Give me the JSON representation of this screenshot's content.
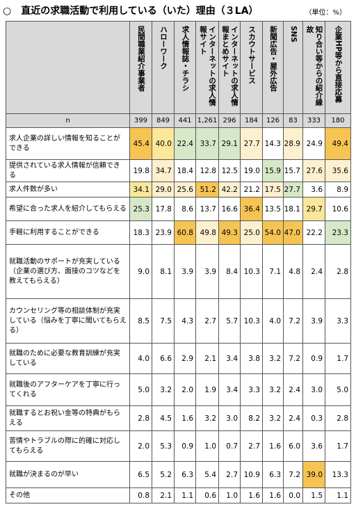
{
  "title": "○　直近の求職活動で利用している（いた）理由（３LA）",
  "unit": "（単位：%）",
  "n_label": "n",
  "columns": [
    {
      "label": "民間職業紹介事業者",
      "n": "399"
    },
    {
      "label": "ハローワーク",
      "n": "849"
    },
    {
      "label": "求人情報誌・チラシ",
      "n": "441"
    },
    {
      "label": "インターネットの求人情報サイト",
      "n": "1,261"
    },
    {
      "label": "インターネットの求人情報まとめサイト",
      "n": "296"
    },
    {
      "label": "スカウトサービス",
      "n": "184"
    },
    {
      "label": "新聞広告・屋外広告",
      "n": "126"
    },
    {
      "label": "SNS",
      "n": "83"
    },
    {
      "label": "知り合い等からの紹介縁故",
      "n": "333"
    },
    {
      "label": "企業HP等から直接応募",
      "n": "180"
    }
  ],
  "rows": [
    {
      "label": "求人企業の詳しい情報を知ることができる",
      "values": [
        "45.4",
        "40.0",
        "22.4",
        "33.7",
        "29.1",
        "27.7",
        "14.3",
        "28.9",
        "24.9",
        "49.4"
      ],
      "hl": [
        "orange",
        "yellow",
        "green",
        "green",
        "green",
        "peach",
        "none",
        "peach",
        "none",
        "orange"
      ]
    },
    {
      "label": "提供されている求人情報が信頼できる",
      "values": [
        "19.8",
        "34.7",
        "18.4",
        "12.8",
        "12.5",
        "19.0",
        "15.9",
        "15.7",
        "27.6",
        "35.6"
      ],
      "hl": [
        "none",
        "peach",
        "none",
        "none",
        "none",
        "none",
        "green",
        "none",
        "peach",
        "peach"
      ]
    },
    {
      "label": "求人件数が多い",
      "values": [
        "34.1",
        "29.0",
        "25.6",
        "51.2",
        "42.2",
        "21.2",
        "17.5",
        "27.7",
        "3.6",
        "8.9"
      ],
      "hl": [
        "yellow",
        "peach",
        "peach",
        "orange",
        "peach",
        "none",
        "peach",
        "green",
        "none",
        "none"
      ]
    },
    {
      "label": "希望に合った求人を紹介してもらえる",
      "values": [
        "25.3",
        "17.8",
        "8.6",
        "13.7",
        "16.6",
        "36.4",
        "13.5",
        "18.1",
        "29.7",
        "10.6"
      ],
      "hl": [
        "green",
        "none",
        "none",
        "none",
        "none",
        "orange",
        "none",
        "none",
        "yellow",
        "none"
      ]
    },
    {
      "label": "手軽に利用することができる",
      "values": [
        "18.3",
        "23.9",
        "60.8",
        "49.8",
        "49.3",
        "25.0",
        "54.0",
        "47.0",
        "22.2",
        "23.3"
      ],
      "hl": [
        "none",
        "none",
        "orange",
        "peach",
        "orange",
        "peach",
        "orange",
        "orange",
        "none",
        "green"
      ]
    },
    {
      "label": "就職活動のサポートが充実している（企業の選び方、面接のコツなどを教えてもらえる）",
      "values": [
        "9.0",
        "8.1",
        "3.9",
        "3.9",
        "8.4",
        "10.3",
        "7.1",
        "4.8",
        "2.4",
        "2.8"
      ],
      "hl": [
        "none",
        "none",
        "none",
        "none",
        "none",
        "none",
        "none",
        "none",
        "none",
        "none"
      ]
    },
    {
      "label": "カウンセリング等の相談体制が充実している（悩みを丁寧に聞いてもらえる）",
      "values": [
        "8.5",
        "7.5",
        "4.3",
        "2.7",
        "5.7",
        "10.3",
        "4.0",
        "7.2",
        "3.9",
        "3.3"
      ],
      "hl": [
        "none",
        "none",
        "none",
        "none",
        "none",
        "none",
        "none",
        "none",
        "none",
        "none"
      ]
    },
    {
      "label": "就職のために必要な教育訓練が充実している",
      "values": [
        "4.0",
        "6.6",
        "2.9",
        "2.1",
        "3.4",
        "3.8",
        "3.2",
        "7.2",
        "0.9",
        "1.7"
      ],
      "hl": [
        "none",
        "none",
        "none",
        "none",
        "none",
        "none",
        "none",
        "none",
        "none",
        "none"
      ]
    },
    {
      "label": "就職後のアフターケアを丁寧に行ってくれる",
      "values": [
        "5.0",
        "3.2",
        "2.0",
        "1.9",
        "3.4",
        "3.3",
        "3.2",
        "2.4",
        "3.0",
        "5.0"
      ],
      "hl": [
        "none",
        "none",
        "none",
        "none",
        "none",
        "none",
        "none",
        "none",
        "none",
        "none"
      ]
    },
    {
      "label": "就職するとお祝い金等の特典がもらえる",
      "values": [
        "2.8",
        "4.5",
        "1.6",
        "3.2",
        "3.0",
        "8.2",
        "3.2",
        "2.4",
        "0.3",
        "2.8"
      ],
      "hl": [
        "none",
        "none",
        "none",
        "none",
        "none",
        "none",
        "none",
        "none",
        "none",
        "none"
      ]
    },
    {
      "label": "苦情やトラブルの際に的確に対応してもらえる",
      "values": [
        "2.0",
        "5.3",
        "0.9",
        "1.0",
        "0.7",
        "2.7",
        "1.6",
        "6.0",
        "3.6",
        "1.7"
      ],
      "hl": [
        "none",
        "none",
        "none",
        "none",
        "none",
        "none",
        "none",
        "none",
        "none",
        "none"
      ]
    },
    {
      "label": "就職が決まるのが早い",
      "values": [
        "6.5",
        "5.2",
        "6.3",
        "5.4",
        "2.7",
        "10.9",
        "6.3",
        "7.2",
        "39.0",
        "13.3"
      ],
      "hl": [
        "none",
        "none",
        "none",
        "none",
        "none",
        "none",
        "none",
        "none",
        "orange",
        "none"
      ]
    },
    {
      "label": "その他",
      "values": [
        "0.8",
        "2.1",
        "1.1",
        "0.6",
        "1.0",
        "1.6",
        "1.6",
        "0.0",
        "1.5",
        "1.1"
      ],
      "hl": [
        "none",
        "none",
        "none",
        "none",
        "none",
        "none",
        "none",
        "none",
        "none",
        "none"
      ]
    }
  ]
}
